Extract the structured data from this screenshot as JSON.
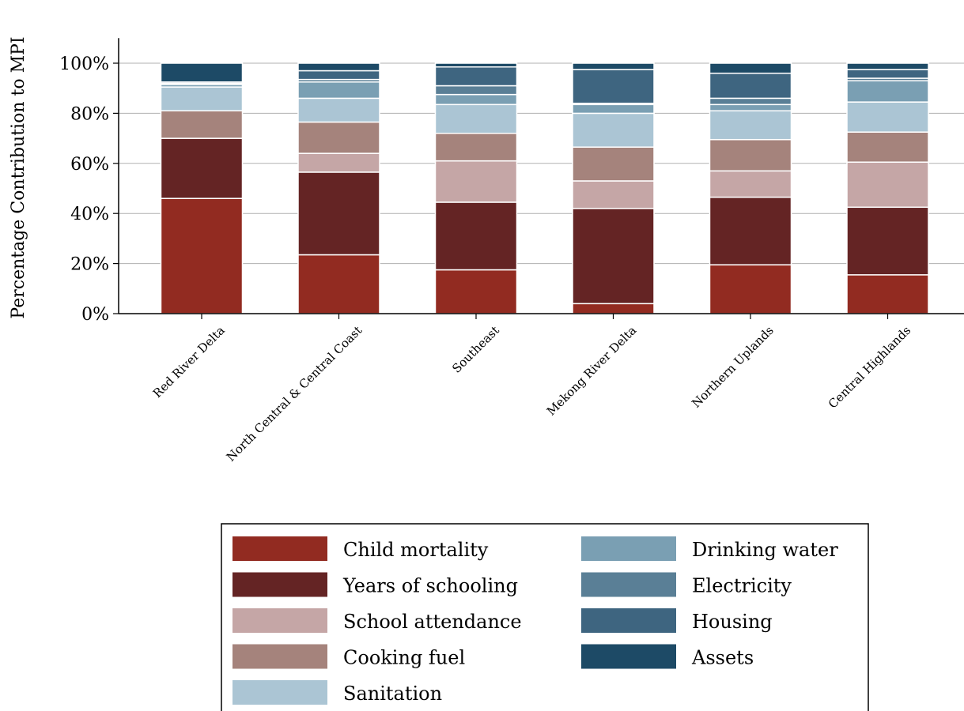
{
  "chart_data": {
    "type": "bar",
    "stacked": true,
    "ylabel": "Percentage Contribution to MPI",
    "xlabel": "",
    "ylim": [
      0,
      110
    ],
    "yticks": [
      0,
      20,
      40,
      60,
      80,
      100
    ],
    "ytick_labels": [
      "0%",
      "20%",
      "40%",
      "60%",
      "80%",
      "100%"
    ],
    "grid": true,
    "legend_position": "bottom",
    "categories": [
      "Red River Delta",
      "North Central & Central Coast",
      "Southeast",
      "Mekong River Delta",
      "Northern Uplands",
      "Central Highlands"
    ],
    "series": [
      {
        "name": "Child mortality",
        "color": "#922b21",
        "values": [
          46,
          23.5,
          17.5,
          4,
          19.5,
          15.5
        ]
      },
      {
        "name": "Years of schooling",
        "color": "#642424",
        "values": [
          24,
          33,
          27,
          38,
          27,
          27
        ]
      },
      {
        "name": "School attendance",
        "color": "#c5a6a6",
        "values": [
          0,
          7.5,
          16.5,
          11,
          10.5,
          18
        ]
      },
      {
        "name": "Cooking fuel",
        "color": "#a5837c",
        "values": [
          11,
          12.5,
          11,
          13.5,
          12.5,
          12
        ]
      },
      {
        "name": "Sanitation",
        "color": "#abc5d4",
        "values": [
          9.5,
          9.5,
          11.5,
          13.5,
          11.5,
          12
        ]
      },
      {
        "name": "Drinking water",
        "color": "#7a9fb3",
        "values": [
          1,
          6.5,
          4,
          3.5,
          2.5,
          8.5
        ]
      },
      {
        "name": "Electricity",
        "color": "#5a7f96",
        "values": [
          0.5,
          1,
          3.5,
          0.5,
          2.5,
          1
        ]
      },
      {
        "name": "Housing",
        "color": "#3e6580",
        "values": [
          0.5,
          3.5,
          7.5,
          13.5,
          10,
          3.5
        ]
      },
      {
        "name": "Assets",
        "color": "#1d4a66",
        "values": [
          7.5,
          3,
          1.5,
          2.5,
          4,
          2.5
        ]
      }
    ]
  }
}
